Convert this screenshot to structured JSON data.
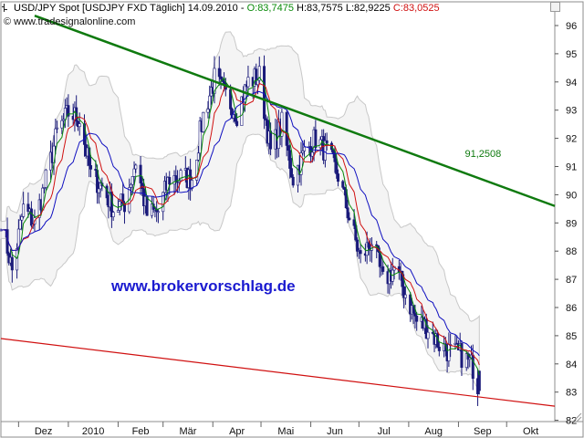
{
  "header": {
    "title": "USD/JPY Spot [USDJPY FXD  Täglich] 14.09.2010 -",
    "open": "O:83,7475",
    "high": "H:83,7575",
    "low": "L:82,9225",
    "close": "C:83,0525",
    "source": "© www.tradesignalonline.com",
    "watermark": "www.brokervorschlag.de"
  },
  "colors": {
    "open": "#0a8a0a",
    "close": "#d01010",
    "resistance": "#0f7a0f",
    "support": "#d01010",
    "candle": "#1a1a7a",
    "bands": "#c8c8c8",
    "ma_fast": "#0a8a0a",
    "ma_mid": "#d01010",
    "ma_slow": "#1010c0"
  },
  "chart_data": {
    "type": "candlestick",
    "title": "USD/JPY Spot [USDJPY FXD  Täglich]",
    "x_ticks": [
      "Dez",
      "2010",
      "Feb",
      "Mär",
      "Apr",
      "Mai",
      "Jun",
      "Jul",
      "Aug",
      "Sep",
      "Okt"
    ],
    "y_ticks": [
      "96",
      "95",
      "94",
      "93",
      "92",
      "91",
      "90",
      "89",
      "88",
      "87",
      "86",
      "85",
      "84",
      "83",
      "82"
    ],
    "ylim": [
      82,
      96.5
    ],
    "x_range": [
      "2009-11-20",
      "2010-10-31"
    ],
    "resistance_line": {
      "start": [
        "2009-12-11",
        96.35
      ],
      "end": [
        "2010-10-31",
        89.6
      ],
      "label": "91,2508",
      "label_at": [
        "2010-09-05",
        91.25
      ]
    },
    "support_line": {
      "start": [
        "2009-11-20",
        84.9
      ],
      "end": [
        "2010-10-31",
        82.5
      ]
    },
    "close_series": {
      "dates": [
        "2009-11-20",
        "2009-11-27",
        "2009-12-04",
        "2009-12-11",
        "2009-12-18",
        "2009-12-25",
        "2010-01-01",
        "2010-01-08",
        "2010-01-15",
        "2010-01-22",
        "2010-01-29",
        "2010-02-05",
        "2010-02-12",
        "2010-02-19",
        "2010-02-26",
        "2010-03-05",
        "2010-03-12",
        "2010-03-19",
        "2010-03-26",
        "2010-04-02",
        "2010-04-09",
        "2010-04-16",
        "2010-04-23",
        "2010-04-30",
        "2010-05-07",
        "2010-05-14",
        "2010-05-21",
        "2010-05-28",
        "2010-06-04",
        "2010-06-11",
        "2010-06-18",
        "2010-06-25",
        "2010-07-02",
        "2010-07-09",
        "2010-07-16",
        "2010-07-23",
        "2010-07-30",
        "2010-08-06",
        "2010-08-13",
        "2010-08-20",
        "2010-08-27",
        "2010-09-03",
        "2010-09-10",
        "2010-09-14"
      ],
      "values": [
        89.2,
        87.3,
        89.5,
        89.0,
        90.5,
        92.2,
        92.9,
        92.7,
        90.7,
        90.3,
        89.5,
        89.7,
        91.2,
        89.3,
        89.4,
        90.6,
        90.6,
        90.6,
        92.8,
        94.1,
        93.5,
        92.9,
        94.0,
        94.2,
        91.5,
        92.5,
        90.6,
        91.5,
        92.0,
        91.5,
        90.7,
        89.2,
        87.7,
        88.4,
        86.9,
        87.4,
        86.5,
        85.5,
        85.3,
        84.7,
        84.4,
        84.3,
        83.9,
        83.05
      ]
    },
    "ohlc_last": {
      "date": "2010-09-14",
      "open": 83.7475,
      "high": 83.7575,
      "low": 82.9225,
      "close": 83.0525
    }
  }
}
